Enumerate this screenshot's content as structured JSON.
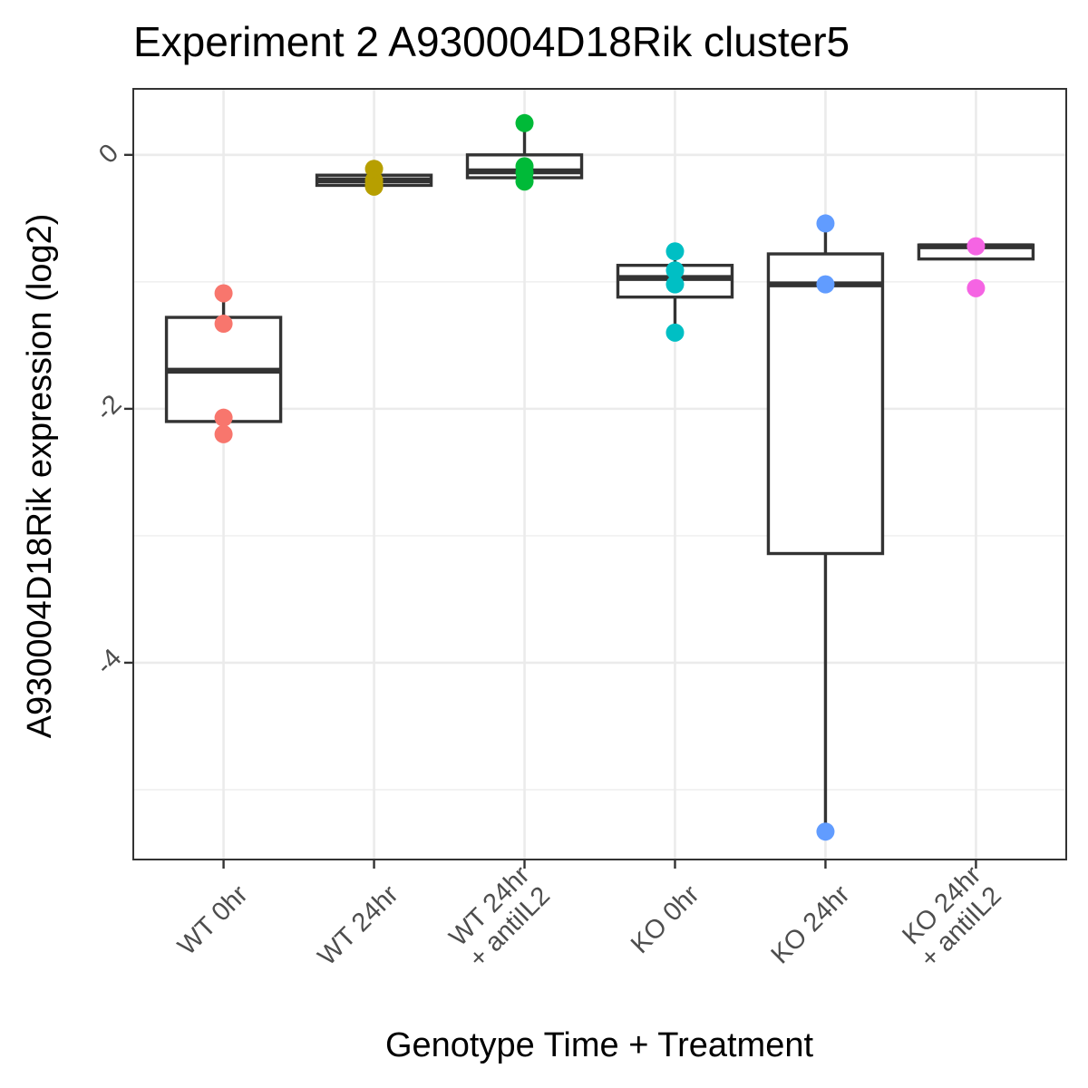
{
  "chart_data": {
    "type": "box",
    "title": "Experiment 2 A930004D18Rik cluster5",
    "xlabel": "Genotype Time + Treatment",
    "ylabel": "A930004D18Rik expression (log2)",
    "ylim": [
      -5.55,
      0.52
    ],
    "yticks": [
      0,
      -2,
      -4
    ],
    "y_tick_labels": [
      "0",
      "-2",
      "-4"
    ],
    "grid": true,
    "categories": [
      {
        "name": "WT 0hr",
        "lines": [
          "WT 0hr"
        ],
        "color": "#F8766D",
        "box": {
          "q1": -2.1,
          "median": -1.7,
          "q3": -1.28,
          "whisker_low": -2.2,
          "whisker_high": -1.09
        },
        "points": [
          -1.09,
          -1.33,
          -2.07,
          -2.2
        ]
      },
      {
        "name": "WT 24hr",
        "lines": [
          "WT 24hr"
        ],
        "color": "#B79F00",
        "box": {
          "q1": -0.24,
          "median": -0.2,
          "q3": -0.16,
          "whisker_low": -0.24,
          "whisker_high": -0.11
        },
        "points": [
          -0.11,
          -0.2,
          -0.23,
          -0.25
        ]
      },
      {
        "name": "WT 24hr + antiIL2",
        "lines": [
          "WT 24hr",
          "+ antiIL2"
        ],
        "color": "#00BA38",
        "box": {
          "q1": -0.18,
          "median": -0.13,
          "q3": 0.0,
          "whisker_low": -0.21,
          "whisker_high": 0.25
        },
        "points": [
          0.25,
          -0.09,
          -0.14,
          -0.21
        ]
      },
      {
        "name": "KO 0hr",
        "lines": [
          "KO 0hr"
        ],
        "color": "#00BFC4",
        "box": {
          "q1": -1.12,
          "median": -0.97,
          "q3": -0.87,
          "whisker_low": -1.4,
          "whisker_high": -0.76
        },
        "points": [
          -0.76,
          -0.91,
          -1.02,
          -1.4
        ]
      },
      {
        "name": "KO 24hr",
        "lines": [
          "KO 24hr"
        ],
        "color": "#619CFF",
        "box": {
          "q1": -3.14,
          "median": -1.02,
          "q3": -0.78,
          "whisker_low": -5.33,
          "whisker_high": -0.54
        },
        "points": [
          -0.54,
          -1.02,
          -5.33
        ]
      },
      {
        "name": "KO 24hr + antiIL2",
        "lines": [
          "KO 24hr",
          "+ antiIL2"
        ],
        "color": "#F564E3",
        "box": {
          "q1": -0.82,
          "median": -0.72,
          "q3": -0.71,
          "whisker_low": -0.82,
          "whisker_high": -0.71
        },
        "points": [
          -0.72,
          -1.05
        ]
      }
    ]
  }
}
